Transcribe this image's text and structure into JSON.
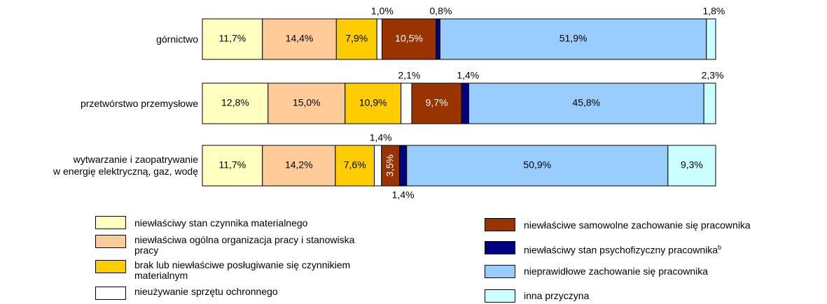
{
  "chart_data": {
    "type": "stacked-bar-horizontal",
    "categories": [
      "górnictwo",
      "przetwórstwo przemysłowe",
      "wytwarzanie i zaopatrywanie\nw energię elektryczną, gaz, wodę"
    ],
    "xlim": [
      0,
      100
    ],
    "series": [
      {
        "name": "niewłaściwy stan czynnika materialnego",
        "color": "#FFFFC0",
        "values": [
          11.7,
          12.8,
          11.7
        ],
        "value_labels": [
          "11,7%",
          "12,8%",
          "11,7%"
        ]
      },
      {
        "name": "niewłaściwa ogólna organizacja pracy i stanowiska pracy",
        "color": "#FFCC99",
        "values": [
          14.4,
          15.0,
          14.2
        ],
        "value_labels": [
          "14,4%",
          "15,0%",
          "14,2%"
        ]
      },
      {
        "name": "brak lub niewłaściwe posługiwanie się czynnikiem materialnym",
        "color": "#FFCC00",
        "values": [
          7.9,
          10.9,
          7.6
        ],
        "value_labels": [
          "7,9%",
          "10,9%",
          "7,6%"
        ]
      },
      {
        "name": "nieużywanie sprzętu ochronnego",
        "color": "#FFFFFF",
        "values": [
          1.0,
          2.1,
          1.4
        ],
        "value_labels": [
          "1,0%",
          "2,1%",
          "1,4%"
        ]
      },
      {
        "name": "niewłaściwe samowolne zachowanie się pracownika",
        "color": "#993300",
        "values": [
          10.5,
          9.7,
          3.5
        ],
        "value_labels": [
          "10,5%",
          "9,7%",
          "3,5%"
        ]
      },
      {
        "name": "niewłaściwy stan psychofizyczny pracownika",
        "note": "b",
        "color": "#000080",
        "values": [
          0.8,
          1.4,
          1.4
        ],
        "value_labels": [
          "0,8%",
          "1,4%",
          "1,4%"
        ]
      },
      {
        "name": "nieprawidłowe zachowanie się pracownika",
        "color": "#99CCFF",
        "values": [
          51.9,
          45.8,
          50.9
        ],
        "value_labels": [
          "51,9%",
          "45,8%",
          "50,9%"
        ]
      },
      {
        "name": "inna przyczyna",
        "color": "#CCFFFF",
        "values": [
          1.8,
          2.3,
          9.3
        ],
        "value_labels": [
          "1,8%",
          "2,3%",
          "9,3%"
        ]
      }
    ]
  }
}
